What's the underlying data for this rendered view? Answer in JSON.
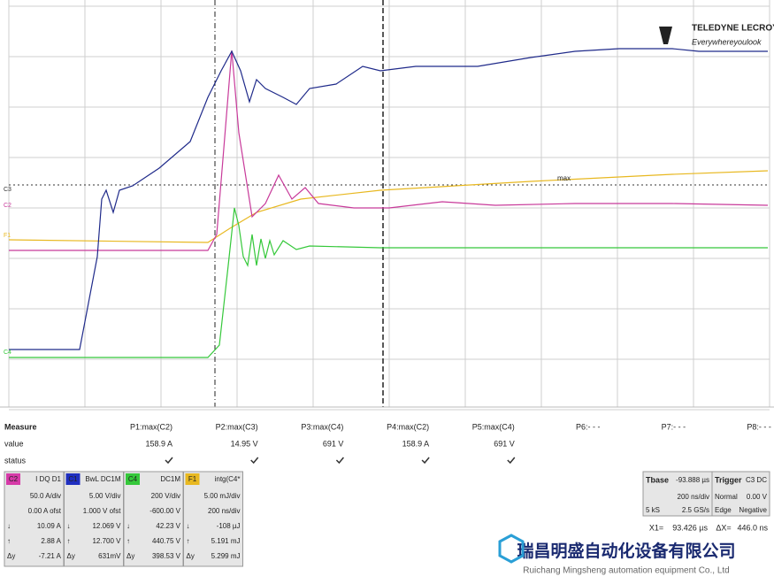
{
  "logo": {
    "brand": "TELEDYNE LECROY",
    "tagline": "Everywhereyoulook"
  },
  "trace_labels": [
    "C3",
    "C2",
    "F1",
    "C4"
  ],
  "marker": "max",
  "measure": {
    "title": "Measure",
    "row_labels": [
      "value",
      "status"
    ],
    "params": [
      "P1:max(C2)",
      "P2:max(C3)",
      "P3:max(C4)",
      "P4:max(C2)",
      "P5:max(C4)",
      "P6:- - -",
      "P7:- - -",
      "P8:- - -"
    ],
    "values": [
      "158.9 A",
      "14.95 V",
      "691 V",
      "158.9 A",
      "691 V"
    ]
  },
  "channels": [
    {
      "id": "C2",
      "header": "I DQ D1",
      "color": "#d63aa8",
      "rows": [
        [
          "50.0 A/div"
        ],
        [
          "0.00 A ofst"
        ],
        [
          "↓",
          "10.09 A"
        ],
        [
          "↑",
          "2.88 A"
        ],
        [
          "Δy",
          "-7.21 A"
        ]
      ]
    },
    {
      "id": "C1",
      "header": "BwL DC1M",
      "color": "#1f2fc0",
      "rows": [
        [
          "5.00 V/div"
        ],
        [
          "1.000 V ofst"
        ],
        [
          "↓",
          "12.069 V"
        ],
        [
          "↑",
          "12.700 V"
        ],
        [
          "Δy",
          "631mV"
        ]
      ]
    },
    {
      "id": "C4",
      "header": "DC1M",
      "color": "#35c83a",
      "rows": [
        [
          "200 V/div"
        ],
        [
          "-600.00 V"
        ],
        [
          "↓",
          "42.23 V"
        ],
        [
          "↑",
          "440.75 V"
        ],
        [
          "Δy",
          "398.53 V"
        ]
      ]
    },
    {
      "id": "F1",
      "header": "intg(C4*",
      "color": "#e8b820",
      "rows": [
        [
          "5.00 mJ/div"
        ],
        [
          "200 ns/div"
        ],
        [
          "↓",
          "-108 µJ"
        ],
        [
          "↑",
          "5.191 mJ"
        ],
        [
          "Δy",
          "5.299 mJ"
        ]
      ]
    }
  ],
  "timebase": {
    "title": "Tbase",
    "offset": "-93.888 µs",
    "rows": [
      [
        "200 ns/div"
      ],
      [
        "5 kS",
        "2.5 GS/s"
      ]
    ]
  },
  "trigger": {
    "title": "Trigger",
    "coupling": "C3 DC",
    "rows": [
      [
        "Normal",
        "0.00 V"
      ],
      [
        "Edge",
        "Negative"
      ]
    ]
  },
  "cursors": [
    "X1=",
    "93.426 µs",
    "ΔX=",
    "446.0 ns"
  ],
  "watermark": {
    "name_cn": "瑞昌明盛自动化设备有限公司",
    "name_en": "Ruichang Mingsheng automation equipment Co., Ltd"
  }
}
